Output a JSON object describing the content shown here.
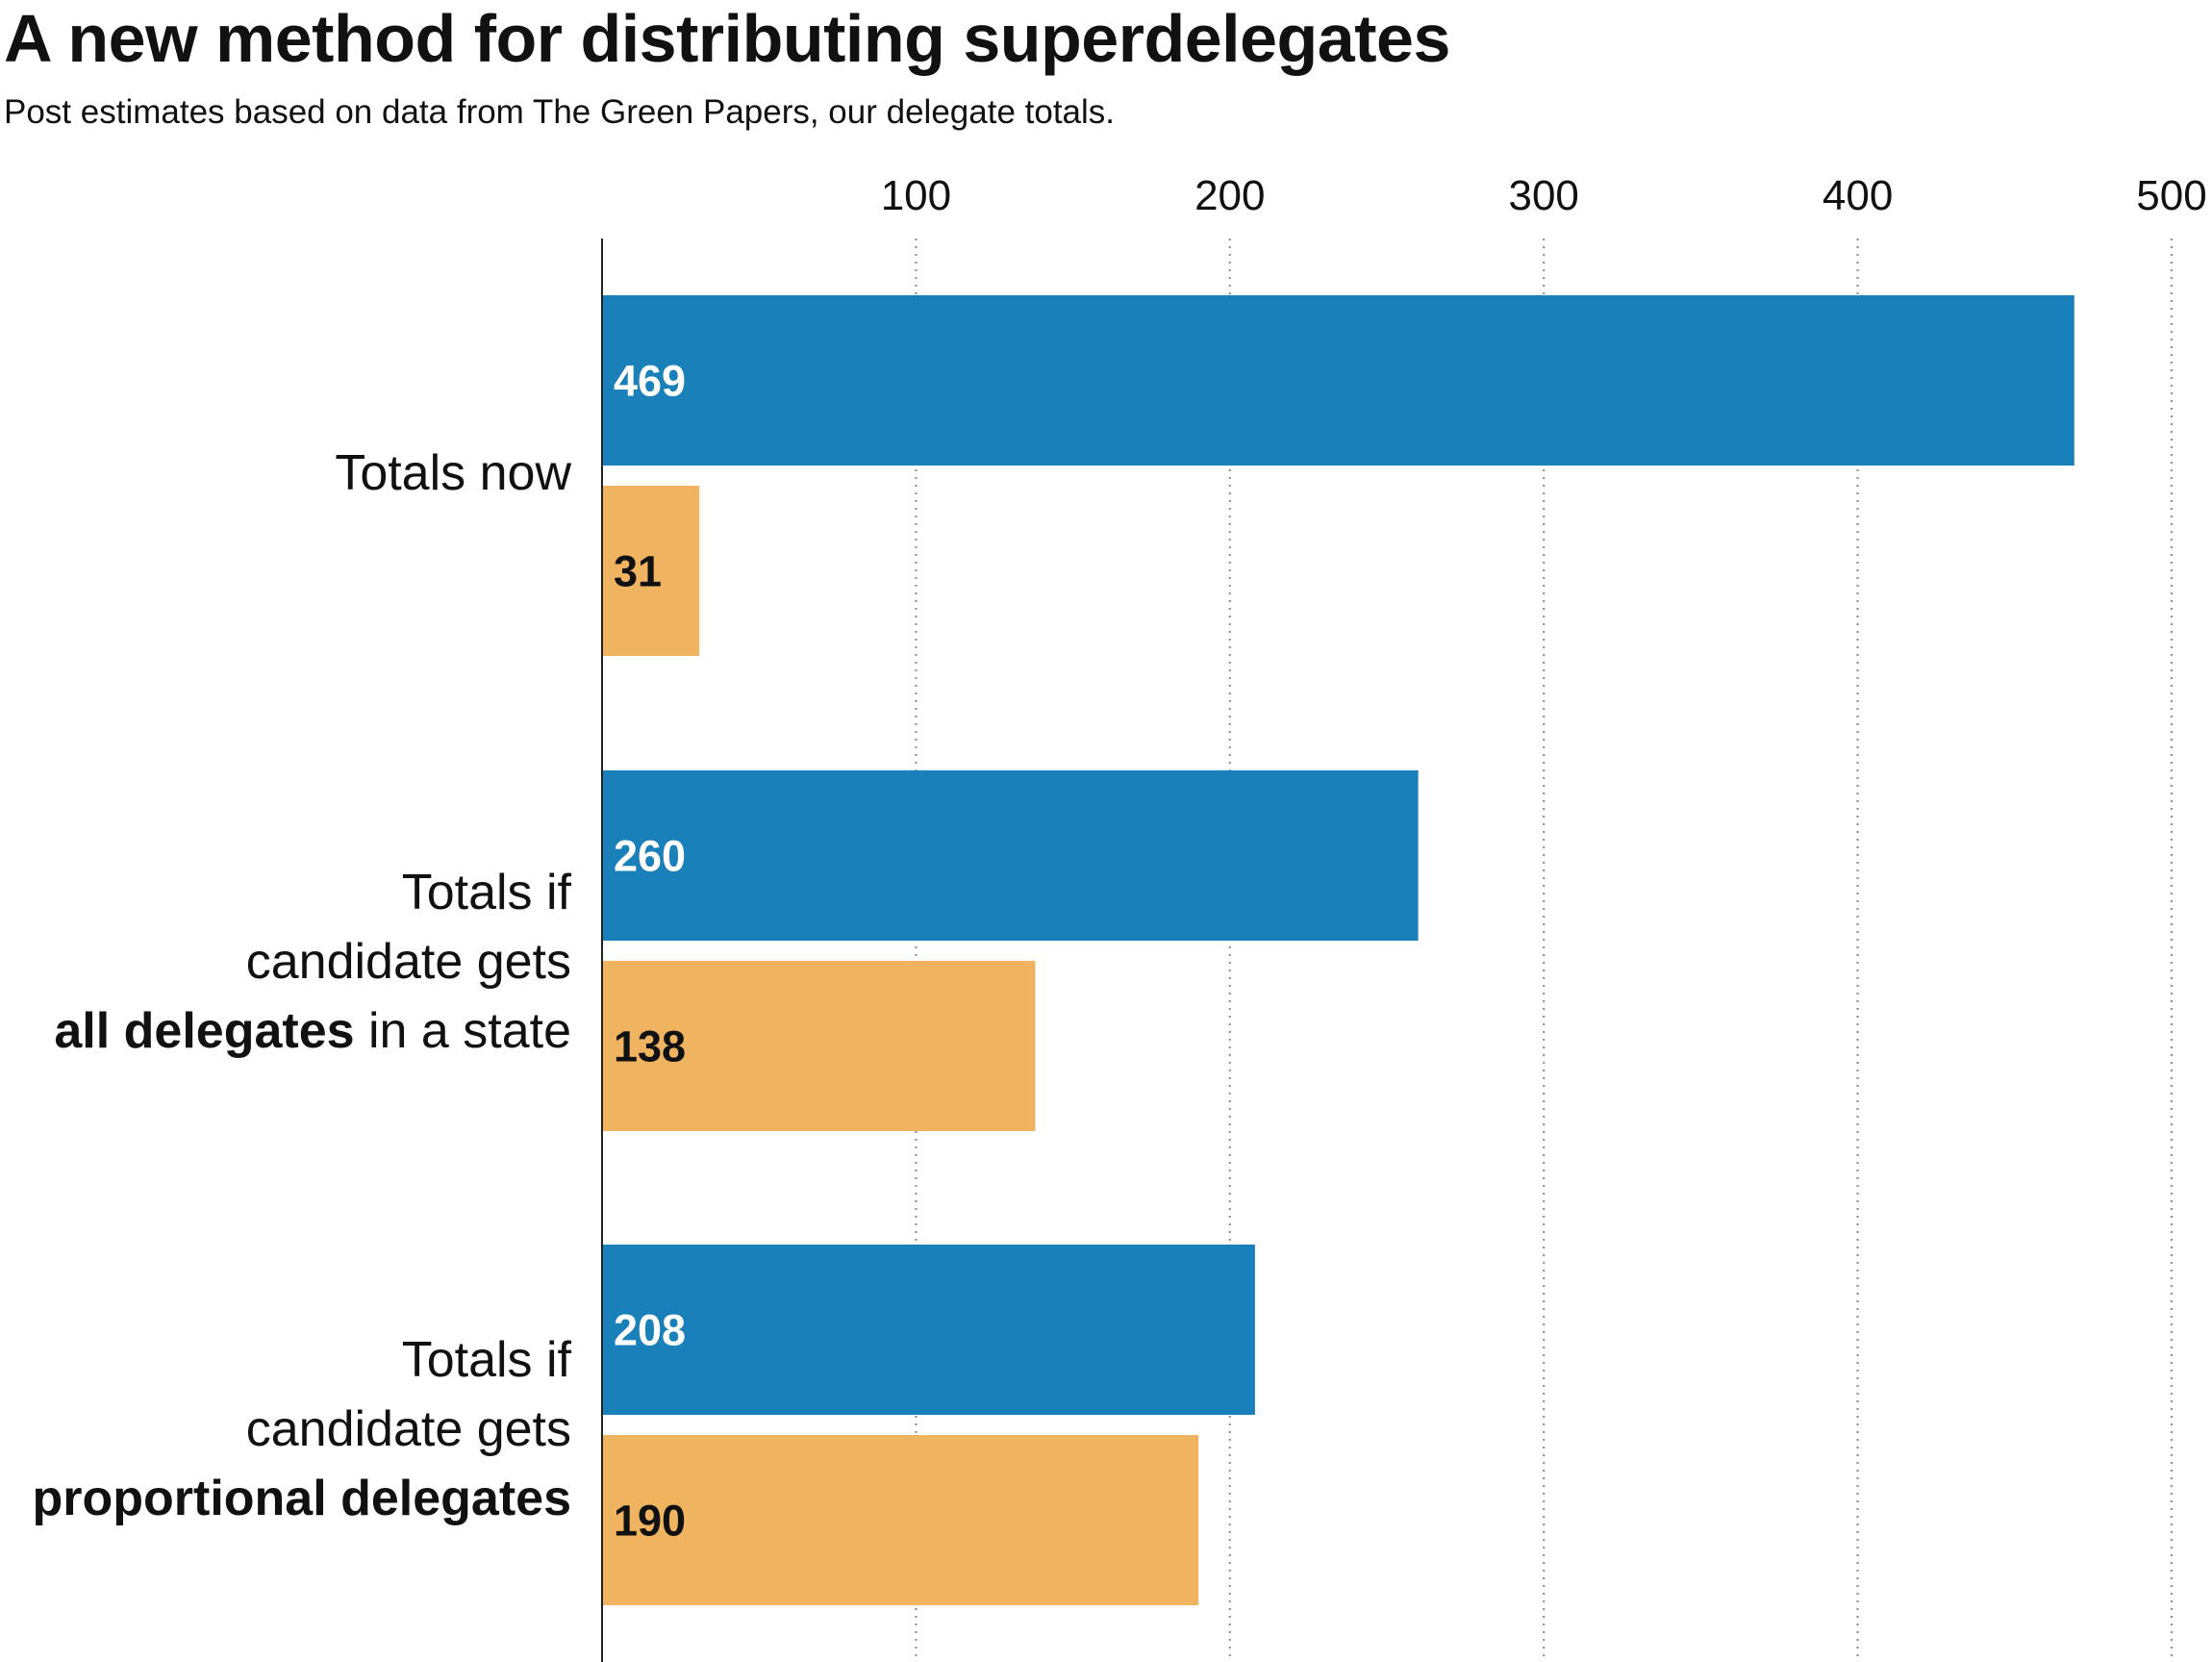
{
  "title": "A new method for distributing superdelegates",
  "subtitle": "Post estimates based on data from The Green Papers, our delegate totals.",
  "colors": {
    "series_a": "#1a80b9",
    "series_b": "#f0b35f",
    "axis": "#222222",
    "grid": "#8a8a8a"
  },
  "chart_data": {
    "type": "bar",
    "orientation": "horizontal",
    "categories": [
      {
        "lines": [
          {
            "parts": [
              {
                "text": "Totals now",
                "bold": false
              }
            ]
          }
        ]
      },
      {
        "lines": [
          {
            "parts": [
              {
                "text": "Totals if",
                "bold": false
              }
            ]
          },
          {
            "parts": [
              {
                "text": "candidate gets",
                "bold": false
              }
            ]
          },
          {
            "parts": [
              {
                "text": "all delegates",
                "bold": true
              },
              {
                "text": " in a state",
                "bold": false
              }
            ]
          }
        ]
      },
      {
        "lines": [
          {
            "parts": [
              {
                "text": "Totals if",
                "bold": false
              }
            ]
          },
          {
            "parts": [
              {
                "text": "candidate gets",
                "bold": false
              }
            ]
          },
          {
            "parts": [
              {
                "text": "proportional delegates",
                "bold": true
              }
            ]
          }
        ]
      }
    ],
    "series": [
      {
        "values": [
          469,
          260,
          208
        ],
        "color": "#1a80b9",
        "label_color": "#ffffff"
      },
      {
        "values": [
          31,
          138,
          190
        ],
        "color": "#f0b35f",
        "label_color": "#111111"
      }
    ],
    "x_ticks": [
      100,
      200,
      300,
      400,
      500
    ],
    "xlim": [
      0,
      500
    ],
    "grid": "vertical dotted",
    "tick_position": "top",
    "legend": "none"
  }
}
